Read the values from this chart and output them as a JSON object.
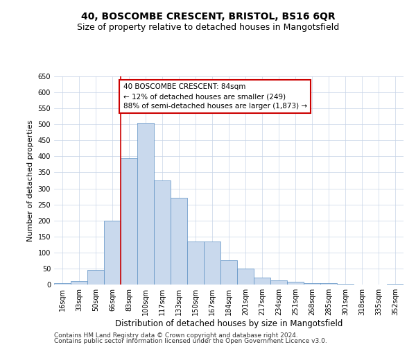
{
  "title": "40, BOSCOMBE CRESCENT, BRISTOL, BS16 6QR",
  "subtitle": "Size of property relative to detached houses in Mangotsfield",
  "xlabel": "Distribution of detached houses by size in Mangotsfield",
  "ylabel": "Number of detached properties",
  "categories": [
    "16sqm",
    "33sqm",
    "50sqm",
    "66sqm",
    "83sqm",
    "100sqm",
    "117sqm",
    "133sqm",
    "150sqm",
    "167sqm",
    "184sqm",
    "201sqm",
    "217sqm",
    "234sqm",
    "251sqm",
    "268sqm",
    "285sqm",
    "301sqm",
    "318sqm",
    "335sqm",
    "352sqm"
  ],
  "values": [
    5,
    10,
    45,
    200,
    395,
    505,
    325,
    270,
    135,
    135,
    75,
    50,
    22,
    12,
    8,
    5,
    5,
    2,
    0,
    0,
    2
  ],
  "bar_color": "#c9d9ed",
  "bar_edge_color": "#5a8fc3",
  "property_line_index": 4,
  "property_line_color": "#cc0000",
  "annotation_line1": "40 BOSCOMBE CRESCENT: 84sqm",
  "annotation_line2": "← 12% of detached houses are smaller (249)",
  "annotation_line3": "88% of semi-detached houses are larger (1,873) →",
  "annotation_box_color": "#cc0000",
  "ylim": [
    0,
    650
  ],
  "yticks": [
    0,
    50,
    100,
    150,
    200,
    250,
    300,
    350,
    400,
    450,
    500,
    550,
    600,
    650
  ],
  "background_color": "#ffffff",
  "grid_color": "#c8d4e8",
  "footer1": "Contains HM Land Registry data © Crown copyright and database right 2024.",
  "footer2": "Contains public sector information licensed under the Open Government Licence v3.0.",
  "title_fontsize": 10,
  "subtitle_fontsize": 9,
  "xlabel_fontsize": 8.5,
  "ylabel_fontsize": 8,
  "tick_fontsize": 7,
  "annotation_fontsize": 7.5,
  "footer_fontsize": 6.5
}
